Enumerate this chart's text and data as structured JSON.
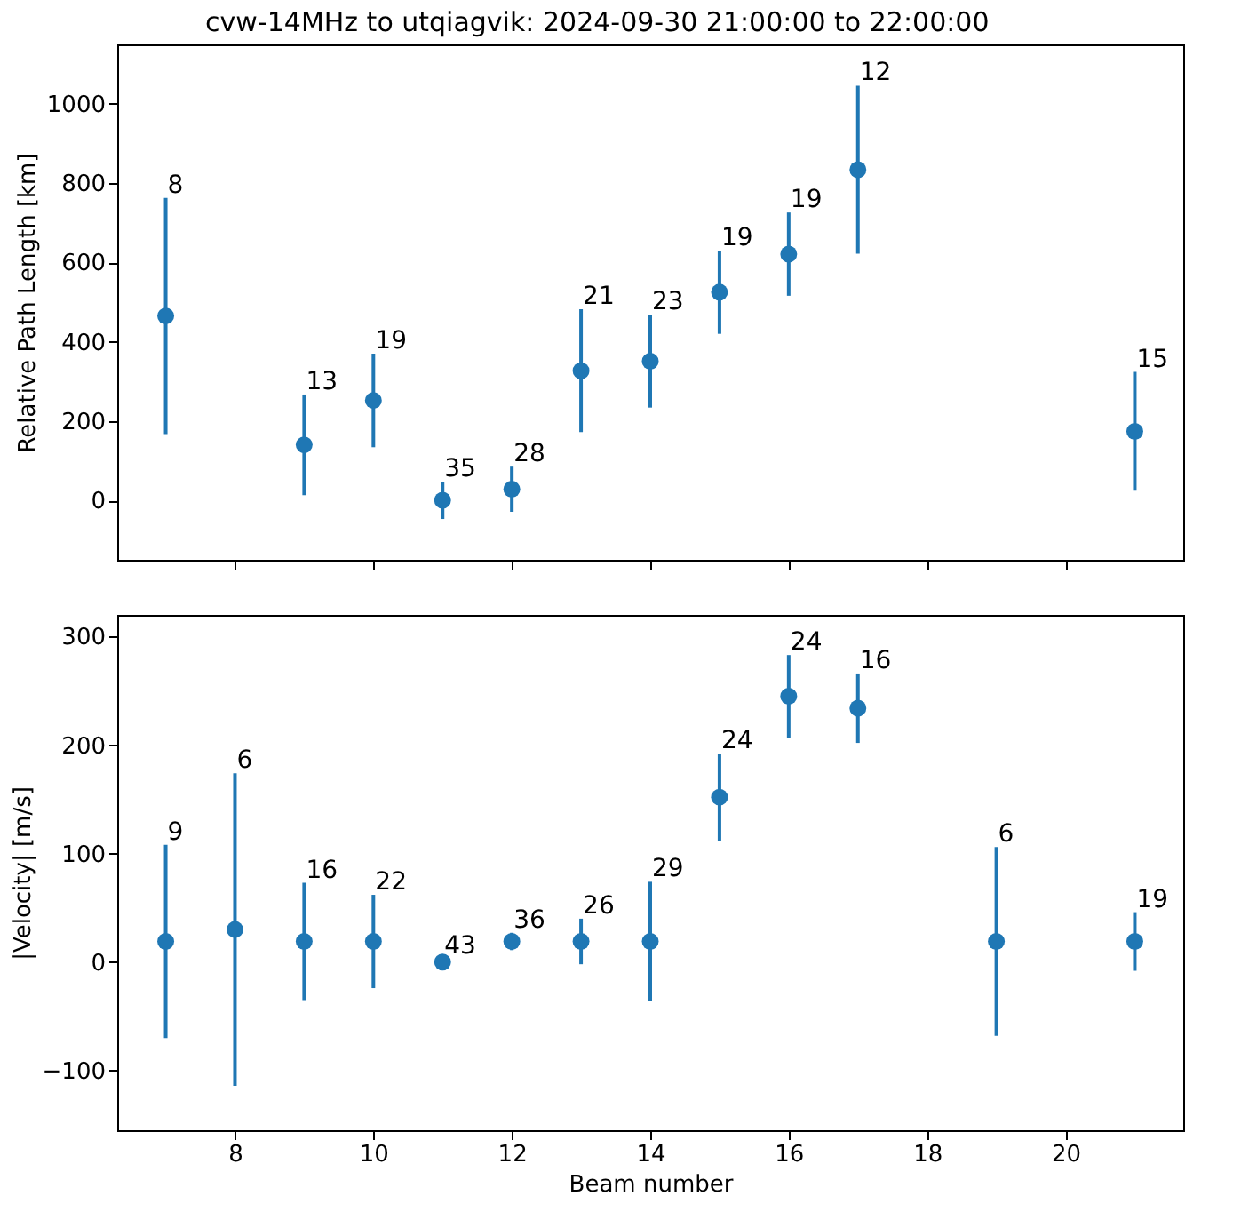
{
  "chart_data": [
    {
      "type": "scatter",
      "title": "cvw-14MHz to utqiagvik: 2024-09-30 21:00:00 to 22:00:00",
      "ylabel": "Relative Path Length [km]",
      "color": "#1f77b4",
      "marker": "circle",
      "tick_labels": "y",
      "x": [
        7,
        9,
        10,
        11,
        12,
        13,
        14,
        15,
        16,
        17,
        21
      ],
      "values": [
        465,
        140,
        252,
        0,
        28,
        327,
        351,
        525,
        621,
        834,
        174
      ],
      "errors": [
        298,
        127,
        118,
        47,
        57,
        155,
        117,
        105,
        105,
        212,
        150
      ],
      "xlim": [
        6.3,
        21.7
      ],
      "xticks": [
        8,
        10,
        12,
        14,
        16,
        18,
        20
      ],
      "ylim": [
        -150,
        1150
      ],
      "yticks": [
        0,
        200,
        400,
        600,
        800,
        1000
      ],
      "annotations": [
        {
          "text": "8",
          "x": 7,
          "y": 763
        },
        {
          "text": "13",
          "x": 9,
          "y": 267
        },
        {
          "text": "19",
          "x": 10,
          "y": 370
        },
        {
          "text": "35",
          "x": 11,
          "y": 47
        },
        {
          "text": "28",
          "x": 12,
          "y": 85
        },
        {
          "text": "21",
          "x": 13,
          "y": 482
        },
        {
          "text": "23",
          "x": 14,
          "y": 468
        },
        {
          "text": "19",
          "x": 15,
          "y": 630
        },
        {
          "text": "19",
          "x": 16,
          "y": 726
        },
        {
          "text": "12",
          "x": 17,
          "y": 1046
        },
        {
          "text": "15",
          "x": 21,
          "y": 324
        }
      ]
    },
    {
      "type": "scatter",
      "xlabel": "Beam number",
      "ylabel": "|Velocity| [m/s]",
      "color": "#1f77b4",
      "marker": "circle",
      "x": [
        7,
        8,
        9,
        10,
        11,
        12,
        13,
        14,
        15,
        16,
        17,
        19,
        21
      ],
      "values": [
        19,
        30,
        19,
        19,
        0,
        19,
        19,
        19,
        152,
        245,
        234,
        19,
        19
      ],
      "errors": [
        89,
        144,
        54,
        43,
        3,
        8,
        21,
        55,
        40,
        38,
        32,
        87,
        27
      ],
      "xlim": [
        6.3,
        21.7
      ],
      "xticks": [
        8,
        10,
        12,
        14,
        16,
        18,
        20
      ],
      "ylim": [
        -155,
        320
      ],
      "yticks": [
        -100,
        0,
        100,
        200,
        300
      ],
      "annotations": [
        {
          "text": "9",
          "x": 7,
          "y": 108
        },
        {
          "text": "6",
          "x": 8,
          "y": 174
        },
        {
          "text": "16",
          "x": 9,
          "y": 73
        },
        {
          "text": "22",
          "x": 10,
          "y": 62
        },
        {
          "text": "43",
          "x": 11,
          "y": 3
        },
        {
          "text": "36",
          "x": 12,
          "y": 27
        },
        {
          "text": "26",
          "x": 13,
          "y": 40
        },
        {
          "text": "29",
          "x": 14,
          "y": 74
        },
        {
          "text": "24",
          "x": 15,
          "y": 192
        },
        {
          "text": "24",
          "x": 16,
          "y": 283
        },
        {
          "text": "16",
          "x": 17,
          "y": 266
        },
        {
          "text": "6",
          "x": 19,
          "y": 106
        },
        {
          "text": "19",
          "x": 21,
          "y": 46
        }
      ]
    }
  ]
}
